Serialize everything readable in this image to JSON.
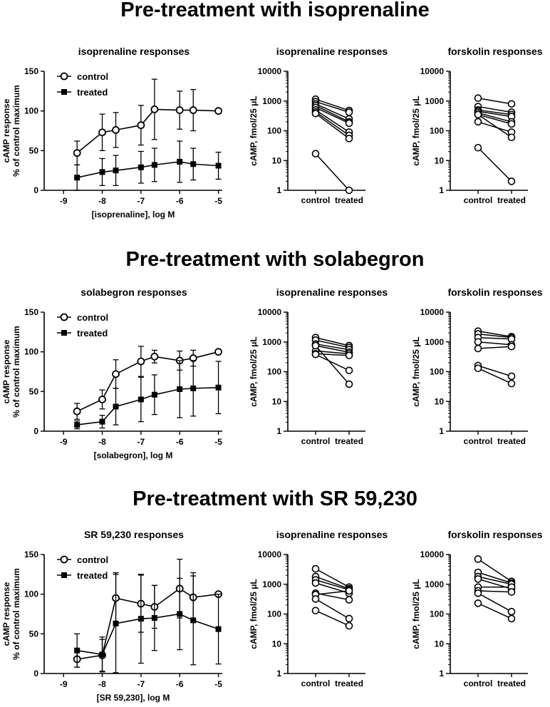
{
  "sections": [
    {
      "title": "Pre-treatment with isoprenaline"
    },
    {
      "title": "Pre-treatment with solabegron"
    },
    {
      "title": "Pre-treatment with SR 59,230"
    }
  ],
  "legend": {
    "control": "control",
    "treated": "treated"
  },
  "colors": {
    "ink": "#000000",
    "open_fill": "#ffffff"
  },
  "chart_data": [
    {
      "type": "line",
      "section": 0,
      "title": "isoprenaline responses",
      "xlabel": "[isoprenaline], log M",
      "ylabel": [
        "cAMP response",
        "% of control maximum"
      ],
      "xlim": [
        -9.5,
        -4.9
      ],
      "ylim": [
        0,
        150
      ],
      "xticks": [
        -9,
        -8,
        -7,
        -6,
        -5
      ],
      "yticks": [
        0,
        50,
        100,
        150
      ],
      "series": [
        {
          "name": "control",
          "marker": "open-circle",
          "x": [
            -8.65,
            -8,
            -7.65,
            -7,
            -6.65,
            -6,
            -5.65,
            -5
          ],
          "y": [
            47,
            73,
            76,
            82,
            102,
            101,
            101,
            100
          ],
          "err": [
            15,
            23,
            22,
            25,
            38,
            24,
            26,
            0
          ]
        },
        {
          "name": "treated",
          "marker": "filled-square",
          "x": [
            -8.65,
            -8,
            -7.65,
            -7,
            -6.65,
            -6,
            -5.65,
            -5
          ],
          "y": [
            16,
            23,
            25,
            29,
            32,
            36,
            33,
            31
          ],
          "err": [
            16,
            17,
            19,
            20,
            21,
            26,
            20,
            17
          ]
        }
      ]
    },
    {
      "type": "paired",
      "section": 0,
      "title": "isoprenaline responses",
      "ylabel": "cAMP, fmol/25 μL",
      "yscale": "log",
      "ylim": [
        1,
        10000
      ],
      "yticks": [
        1,
        10,
        100,
        1000,
        10000
      ],
      "categories": [
        "control",
        "treated"
      ],
      "pairs": [
        [
          1150,
          480
        ],
        [
          950,
          420
        ],
        [
          800,
          250
        ],
        [
          700,
          200
        ],
        [
          600,
          180
        ],
        [
          500,
          90
        ],
        [
          430,
          70
        ],
        [
          380,
          55
        ],
        [
          17,
          1
        ]
      ]
    },
    {
      "type": "paired",
      "section": 0,
      "title": "forskolin responses",
      "ylabel": "cAMP, fmol/25 μL",
      "yscale": "log",
      "ylim": [
        1,
        10000
      ],
      "yticks": [
        1,
        10,
        100,
        1000,
        10000
      ],
      "categories": [
        "control",
        "treated"
      ],
      "pairs": [
        [
          1250,
          800
        ],
        [
          650,
          420
        ],
        [
          500,
          350
        ],
        [
          450,
          300
        ],
        [
          400,
          200
        ],
        [
          350,
          170
        ],
        [
          200,
          90
        ],
        [
          350,
          60
        ],
        [
          27,
          2
        ]
      ]
    },
    {
      "type": "line",
      "section": 1,
      "title": "solabegron responses",
      "xlabel": "[solabegron], log M",
      "ylabel": [
        "cAMP response",
        "% of control maximum"
      ],
      "xlim": [
        -9.5,
        -4.9
      ],
      "ylim": [
        0,
        150
      ],
      "xticks": [
        -9,
        -8,
        -7,
        -6,
        -5
      ],
      "yticks": [
        0,
        50,
        100,
        150
      ],
      "series": [
        {
          "name": "control",
          "marker": "open-circle",
          "x": [
            -8.65,
            -8,
            -7.65,
            -7,
            -6.65,
            -6,
            -5.65,
            -5
          ],
          "y": [
            25,
            40,
            72,
            88,
            94,
            89,
            92,
            100
          ],
          "err": [
            10,
            12,
            18,
            19,
            8,
            12,
            10,
            0
          ]
        },
        {
          "name": "treated",
          "marker": "filled-square",
          "x": [
            -8.65,
            -8,
            -7.65,
            -7,
            -6.65,
            -6,
            -5.65,
            -5
          ],
          "y": [
            8,
            12,
            31,
            40,
            46,
            53,
            54,
            55
          ],
          "err": [
            5,
            8,
            23,
            28,
            25,
            36,
            35,
            33
          ]
        }
      ]
    },
    {
      "type": "paired",
      "section": 1,
      "title": "isoprenaline responses",
      "ylabel": "cAMP, fmol/25 μL",
      "yscale": "log",
      "ylim": [
        1,
        10000
      ],
      "yticks": [
        1,
        10,
        100,
        1000,
        10000
      ],
      "categories": [
        "control",
        "treated"
      ],
      "pairs": [
        [
          1400,
          750
        ],
        [
          1150,
          650
        ],
        [
          850,
          550
        ],
        [
          750,
          450
        ],
        [
          500,
          400
        ],
        [
          400,
          350
        ],
        [
          380,
          110
        ],
        [
          750,
          38
        ]
      ]
    },
    {
      "type": "paired",
      "section": 1,
      "title": "forskolin responses",
      "ylabel": "cAMP, fmol/25 μL",
      "yscale": "log",
      "ylim": [
        1,
        10000
      ],
      "yticks": [
        1,
        10,
        100,
        1000,
        10000
      ],
      "categories": [
        "control",
        "treated"
      ],
      "pairs": [
        [
          2300,
          1500
        ],
        [
          1850,
          1400
        ],
        [
          1400,
          1250
        ],
        [
          1000,
          800
        ],
        [
          600,
          700
        ],
        [
          160,
          70
        ],
        [
          130,
          40
        ]
      ]
    },
    {
      "type": "line",
      "section": 2,
      "title": "SR 59,230 responses",
      "xlabel": "[SR 59,230], log M",
      "ylabel": [
        "cAMP response",
        "% of control maximum"
      ],
      "xlim": [
        -9.5,
        -4.9
      ],
      "ylim": [
        0,
        150
      ],
      "xticks": [
        -9,
        -8,
        -7,
        -6,
        -5
      ],
      "yticks": [
        0,
        50,
        100,
        150
      ],
      "series": [
        {
          "name": "control",
          "marker": "open-circle",
          "x": [
            -8.65,
            -8,
            -7.65,
            -7,
            -6.65,
            -6,
            -5.65,
            -5
          ],
          "y": [
            18,
            23,
            95,
            88,
            84,
            107,
            96,
            100
          ],
          "err": [
            10,
            20,
            32,
            36,
            27,
            37,
            31,
            0
          ]
        },
        {
          "name": "treated",
          "marker": "filled-square",
          "x": [
            -8.65,
            -8,
            -7.65,
            -7,
            -6.65,
            -6,
            -5.65,
            -5
          ],
          "y": [
            29,
            24,
            63,
            69,
            70,
            75,
            67,
            56
          ],
          "err": [
            21,
            22,
            62,
            56,
            41,
            45,
            56,
            44
          ]
        }
      ]
    },
    {
      "type": "paired",
      "section": 2,
      "title": "isoprenaline responses",
      "ylabel": "cAMP, fmol/25 μL",
      "yscale": "log",
      "ylim": [
        1,
        10000
      ],
      "yticks": [
        1,
        10,
        100,
        1000,
        10000
      ],
      "categories": [
        "control",
        "treated"
      ],
      "pairs": [
        [
          3300,
          800
        ],
        [
          1800,
          700
        ],
        [
          1400,
          650
        ],
        [
          1100,
          500
        ],
        [
          500,
          300
        ],
        [
          450,
          600
        ],
        [
          320,
          70
        ],
        [
          130,
          40
        ]
      ]
    },
    {
      "type": "paired",
      "section": 2,
      "title": "forskolin responses",
      "ylabel": "cAMP, fmol/25 μL",
      "yscale": "log",
      "ylim": [
        1,
        10000
      ],
      "yticks": [
        1,
        10,
        100,
        1000,
        10000
      ],
      "categories": [
        "control",
        "treated"
      ],
      "pairs": [
        [
          7000,
          1250
        ],
        [
          2500,
          1100
        ],
        [
          1800,
          1000
        ],
        [
          1500,
          700
        ],
        [
          800,
          800
        ],
        [
          600,
          550
        ],
        [
          500,
          120
        ],
        [
          230,
          70
        ]
      ]
    }
  ]
}
